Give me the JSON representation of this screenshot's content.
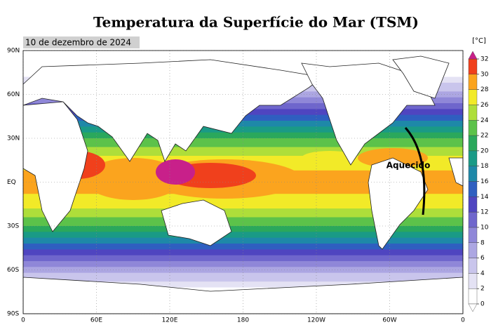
{
  "title": "Temperatura da Superfície do Mar (TSM)",
  "date": "10 de dezembro de 2024",
  "map": {
    "annotation": "Aquecido",
    "xlim": [
      0,
      360
    ],
    "ylim": [
      -90,
      90
    ],
    "xticks": [
      0,
      {
        "value": 60,
        "label": "60E"
      },
      {
        "value": 120,
        "label": "120E"
      },
      180,
      {
        "value": 240,
        "label": "120W"
      },
      {
        "value": 300,
        "label": "60W"
      },
      {
        "value": 360,
        "label": "0"
      }
    ],
    "yticks": [
      {
        "value": 90,
        "label": "90N"
      },
      {
        "value": 60,
        "label": "60N"
      },
      {
        "value": 30,
        "label": "30N"
      },
      {
        "value": 0,
        "label": "EQ"
      },
      {
        "value": -30,
        "label": "30S"
      },
      {
        "value": -60,
        "label": "60S"
      },
      {
        "value": -90,
        "label": "90S"
      }
    ]
  },
  "colorbar": {
    "unit": "[°C]",
    "ticks": [
      0,
      2,
      4,
      6,
      8,
      10,
      12,
      14,
      16,
      18,
      20,
      22,
      24,
      26,
      28,
      30,
      32
    ],
    "colors": [
      "#ffffff",
      "#e4e2f4",
      "#c9c5ec",
      "#aca6e2",
      "#8f87d8",
      "#6f66cc",
      "#4f45c0",
      "#2f5fc0",
      "#1e88a8",
      "#1a9a86",
      "#2aa85c",
      "#5cc24a",
      "#aede3a",
      "#f2ea28",
      "#fba41e",
      "#f0401c",
      "#c8208a"
    ]
  }
}
